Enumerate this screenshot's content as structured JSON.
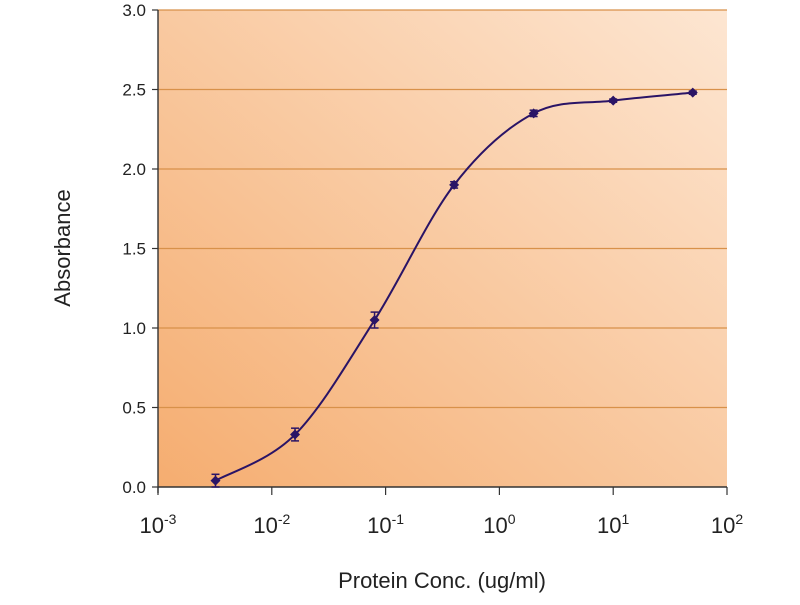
{
  "chart_data": {
    "type": "line",
    "title": "",
    "xlabel": "Protein Conc. (ug/ml)",
    "ylabel": "Absorbance",
    "xscale": "log",
    "xlim": [
      0.001,
      100
    ],
    "ylim": [
      0,
      3.0
    ],
    "x_ticks": [
      {
        "base": "10",
        "exp": "-3",
        "value": 0.001
      },
      {
        "base": "10",
        "exp": "-2",
        "value": 0.01
      },
      {
        "base": "10",
        "exp": "-1",
        "value": 0.1
      },
      {
        "base": "10",
        "exp": "0",
        "value": 1
      },
      {
        "base": "10",
        "exp": "1",
        "value": 10
      },
      {
        "base": "10",
        "exp": "2",
        "value": 100
      }
    ],
    "y_ticks": [
      "0.0",
      "0.5",
      "1.0",
      "1.5",
      "2.0",
      "2.5",
      "3.0"
    ],
    "grid": true,
    "legend": "none",
    "series": [
      {
        "name": "Absorbance",
        "x": [
          0.0032,
          0.016,
          0.08,
          0.4,
          2,
          10,
          50
        ],
        "y": [
          0.04,
          0.33,
          1.05,
          1.9,
          2.35,
          2.43,
          2.48
        ],
        "error": [
          0.04,
          0.04,
          0.05,
          0.02,
          0.02,
          0.01,
          0.01
        ],
        "color": "#2a1466"
      }
    ],
    "colors": {
      "bg_dark": "#f5ad70",
      "bg_light": "#fde6d2",
      "grid": "#d8914a"
    }
  }
}
